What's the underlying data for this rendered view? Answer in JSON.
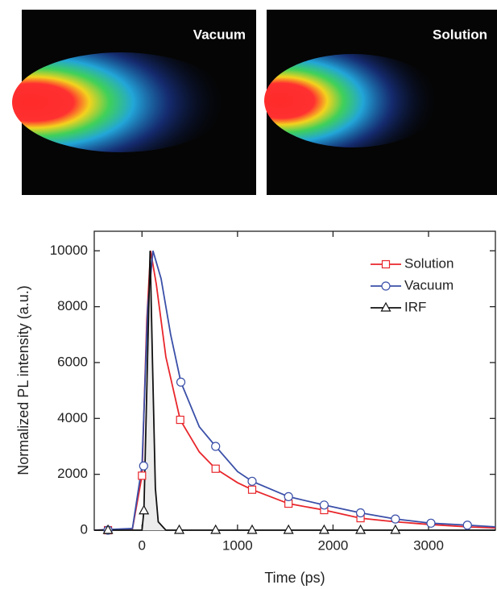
{
  "panels": [
    {
      "label": "Vacuum"
    },
    {
      "label": "Solution"
    }
  ],
  "chart_data": {
    "type": "line",
    "x_label": "Time (ps)",
    "y_label": "Normalized PL intensity (a.u.)",
    "xlim": [
      -500,
      3700
    ],
    "ylim": [
      0,
      10700
    ],
    "xticks": [
      0,
      1000,
      2000,
      3000
    ],
    "yticks": [
      0,
      2000,
      4000,
      6000,
      8000,
      10000
    ],
    "legend": "upper right",
    "series": [
      {
        "name": "Solution",
        "color": "#e8262b",
        "marker": "square",
        "x": [
          -500,
          -100,
          0,
          50,
          90,
          150,
          250,
          400,
          600,
          771,
          1000,
          1153,
          1534,
          1907,
          2288,
          2653,
          3025,
          3407,
          3700
        ],
        "values": [
          0,
          50,
          1950,
          7500,
          10000,
          8800,
          6200,
          3950,
          2800,
          2200,
          1700,
          1450,
          950,
          720,
          430,
          300,
          200,
          120,
          80
        ],
        "markers": {
          "x": [
            -356,
            0,
            400,
            771,
            1153,
            1534,
            1907,
            2288
          ],
          "values": [
            0,
            1950,
            3950,
            2200,
            1450,
            950,
            720,
            430
          ]
        }
      },
      {
        "name": "Vacuum",
        "color": "#3a4fa8",
        "marker": "circle",
        "x": [
          -500,
          -100,
          0,
          60,
          115,
          200,
          300,
          407,
          600,
          771,
          1000,
          1153,
          1534,
          1907,
          2288,
          2653,
          3025,
          3407,
          3700
        ],
        "values": [
          0,
          60,
          2300,
          8000,
          10000,
          9000,
          7000,
          5300,
          3700,
          3000,
          2100,
          1750,
          1200,
          900,
          620,
          400,
          250,
          180,
          120
        ],
        "markers": {
          "x": [
            -356,
            17,
            407,
            771,
            1153,
            1534,
            1907,
            2288,
            2653,
            3025,
            3407
          ],
          "values": [
            0,
            2300,
            5300,
            3000,
            1750,
            1200,
            900,
            620,
            400,
            250,
            180
          ]
        }
      },
      {
        "name": "IRF",
        "color": "#111111",
        "marker": "triangle",
        "fill": "#ececec",
        "x": [
          -500,
          0,
          20,
          50,
          85,
          110,
          140,
          170,
          250,
          3700
        ],
        "values": [
          0,
          0,
          700,
          5000,
          10000,
          6000,
          1500,
          300,
          0,
          0
        ],
        "markers": {
          "x": [
            -356,
            20,
            390,
            771,
            1153,
            1534,
            1907,
            2288,
            2653
          ],
          "values": [
            0,
            700,
            0,
            0,
            0,
            0,
            0,
            0,
            0
          ]
        }
      }
    ]
  }
}
